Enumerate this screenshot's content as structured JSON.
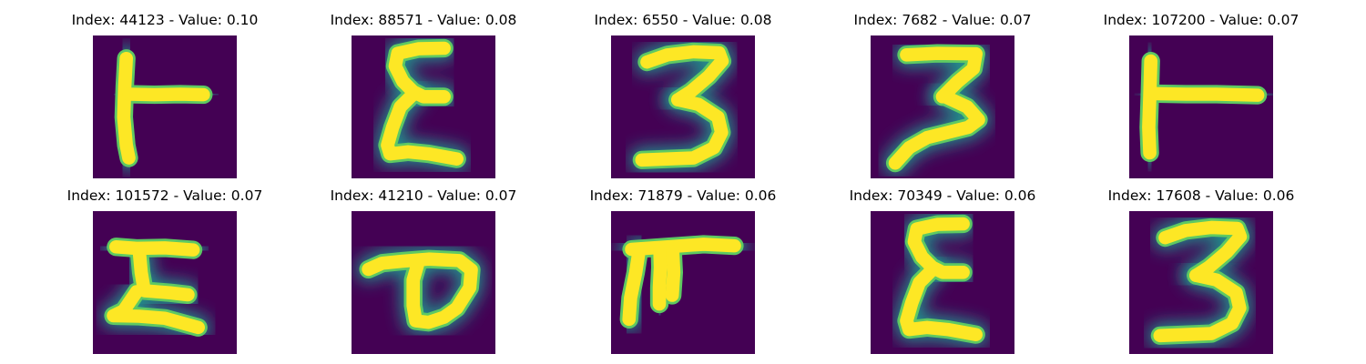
{
  "colors": {
    "background": "#440154",
    "edge": "#21918c",
    "mid": "#5ec962",
    "core": "#fde725"
  },
  "panels": [
    {
      "title": "Index: 44123 - Value: 0.10",
      "glyph": "t-sideways"
    },
    {
      "title": "Index: 88571 - Value: 0.08",
      "glyph": "epsilon"
    },
    {
      "title": "Index: 6550 - Value: 0.08",
      "glyph": "three"
    },
    {
      "title": "Index: 7682 - Value: 0.07",
      "glyph": "three-slanted"
    },
    {
      "title": "Index: 107200 - Value: 0.07",
      "glyph": "t-sideways-thin"
    },
    {
      "title": "Index: 101572 - Value: 0.07",
      "glyph": "z-like"
    },
    {
      "title": "Index: 41210 - Value: 0.07",
      "glyph": "loop"
    },
    {
      "title": "Index: 71879 - Value: 0.06",
      "glyph": "pi-like"
    },
    {
      "title": "Index: 70349 - Value: 0.06",
      "glyph": "epsilon"
    },
    {
      "title": "Index: 17608 - Value: 0.06",
      "glyph": "three"
    }
  ]
}
